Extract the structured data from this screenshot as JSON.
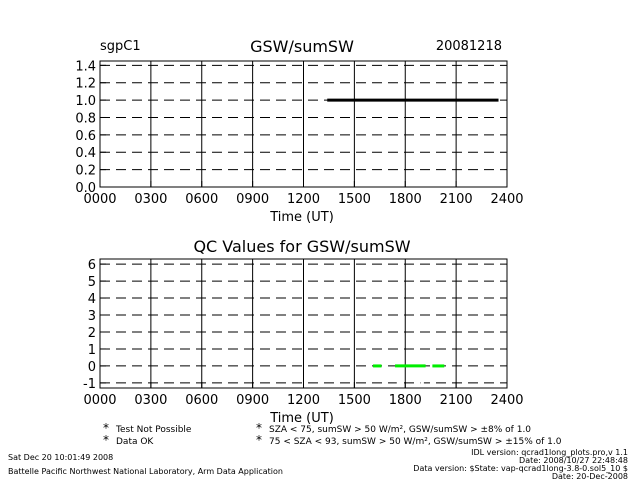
{
  "header": {
    "site": "sgpC1",
    "date": "20081218"
  },
  "chart_data": [
    {
      "type": "line",
      "title": "GSW/sumSW",
      "xlabel": "Time (UT)",
      "ylabel": "",
      "xlim": [
        0,
        2400
      ],
      "ylim": [
        0.0,
        1.45
      ],
      "x_ticks": [
        "0000",
        "0300",
        "0600",
        "0900",
        "1200",
        "1500",
        "1800",
        "2100",
        "2400"
      ],
      "y_ticks": [
        "0.0",
        "0.2",
        "0.4",
        "0.6",
        "0.8",
        "1.0",
        "1.2",
        "1.4"
      ],
      "grid": true,
      "series": [
        {
          "color": "#000000",
          "x": [
            1340,
            2350
          ],
          "y": [
            1.0,
            1.0
          ]
        }
      ]
    },
    {
      "type": "scatter",
      "title": "QC Values for GSW/sumSW",
      "xlabel": "Time (UT)",
      "ylabel": "",
      "xlim": [
        0,
        2400
      ],
      "ylim": [
        -1.3,
        6.3
      ],
      "x_ticks": [
        "0000",
        "0300",
        "0600",
        "0900",
        "1200",
        "1500",
        "1800",
        "2100",
        "2400"
      ],
      "y_ticks": [
        "-1",
        "0",
        "1",
        "2",
        "3",
        "4",
        "5",
        "6"
      ],
      "grid": true,
      "series": [
        {
          "color": "#00ee00",
          "segments": [
            [
              1610,
              1660
            ],
            [
              1740,
              1920
            ],
            [
              1960,
              2030
            ]
          ],
          "y": 0
        },
        {
          "color": "#ffffff",
          "segments": [
            [
              1750,
              1770
            ],
            [
              1890,
              1910
            ]
          ],
          "y": -1
        }
      ]
    }
  ],
  "legend": {
    "items": [
      {
        "symbol": "*",
        "color": "#000000",
        "label": "Test Not Possible"
      },
      {
        "symbol": "*",
        "color": "#00ee00",
        "label": "Data OK"
      },
      {
        "symbol": "*",
        "color": "#ffa500",
        "label": "SZA < 75, sumSW > 50 W/m², GSW/sumSW > ±8% of 1.0"
      },
      {
        "symbol": "*",
        "color": "#ff0000",
        "label": "75 < SZA < 93, sumSW > 50 W/m², GSW/sumSW > ±15% of 1.0"
      }
    ]
  },
  "footer": {
    "run_date": "Sat Dec 20 10:01:49 2008",
    "lab": "Battelle Pacific Northwest National Laboratory, Arm Data Application",
    "idl_version": "IDL version: qcrad1long_plots.pro,v 1.1",
    "idl_date": "Date: 2008/10/27 22:48:48",
    "data_version": "Data version: $State: vap-qcrad1long-3.8-0.sol5_10 $",
    "data_date": "Date: 20-Dec-2008"
  }
}
